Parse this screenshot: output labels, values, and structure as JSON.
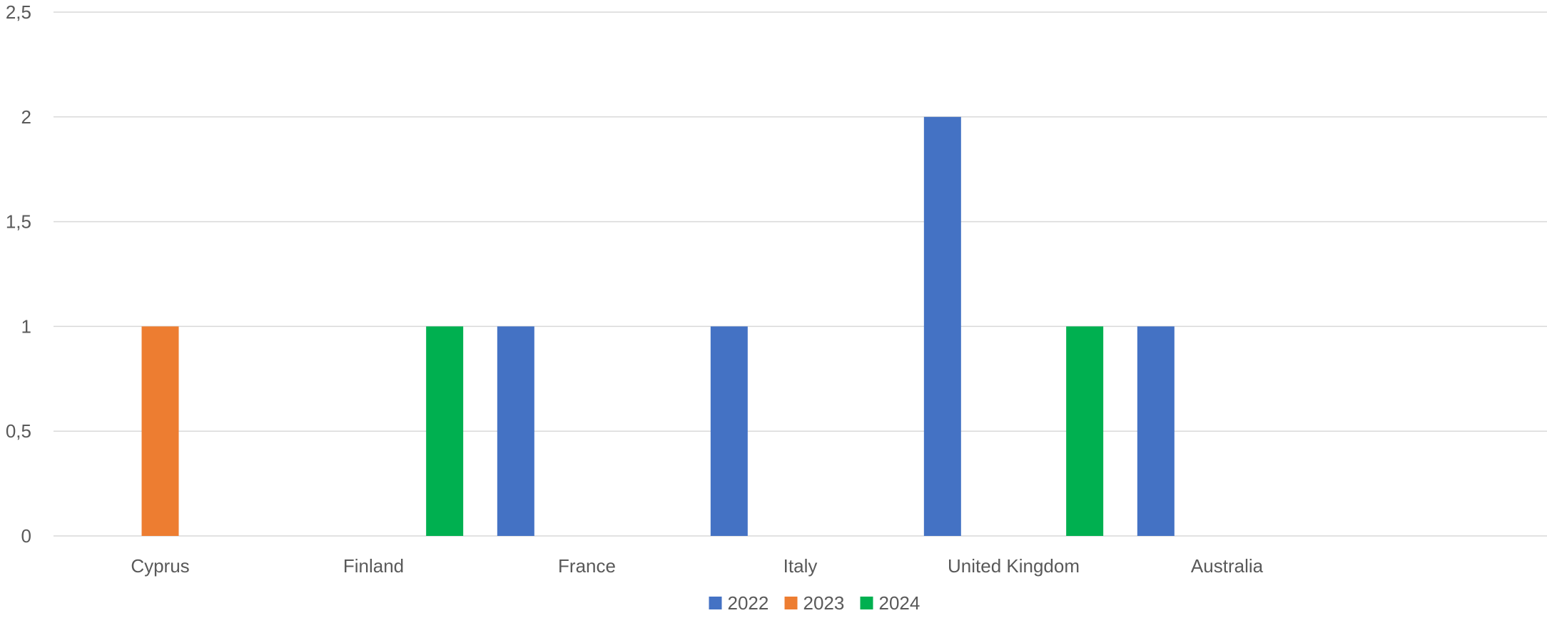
{
  "chart_data": {
    "type": "bar",
    "title": "",
    "xlabel": "",
    "ylabel": "",
    "categories": [
      "Cyprus",
      "Finland",
      "France",
      "Italy",
      "United Kingdom",
      "Australia",
      ""
    ],
    "series": [
      {
        "name": "2022",
        "color": "#4472C4",
        "values": [
          0,
          0,
          1,
          1,
          2,
          1,
          0
        ]
      },
      {
        "name": "2023",
        "color": "#ED7D31",
        "values": [
          1,
          0,
          0,
          0,
          0,
          0,
          0
        ]
      },
      {
        "name": "2024",
        "color": "#00B050",
        "values": [
          0,
          1,
          0,
          0,
          1,
          0,
          0
        ]
      }
    ],
    "ylim": [
      0,
      2.5
    ],
    "y_ticks": [
      {
        "value": 0,
        "label": "0"
      },
      {
        "value": 0.5,
        "label": "0,5"
      },
      {
        "value": 1,
        "label": "1"
      },
      {
        "value": 1.5,
        "label": "1,5"
      },
      {
        "value": 2,
        "label": "2"
      },
      {
        "value": 2.5,
        "label": "2,5"
      }
    ],
    "grid": true,
    "legend_position": "bottom"
  }
}
